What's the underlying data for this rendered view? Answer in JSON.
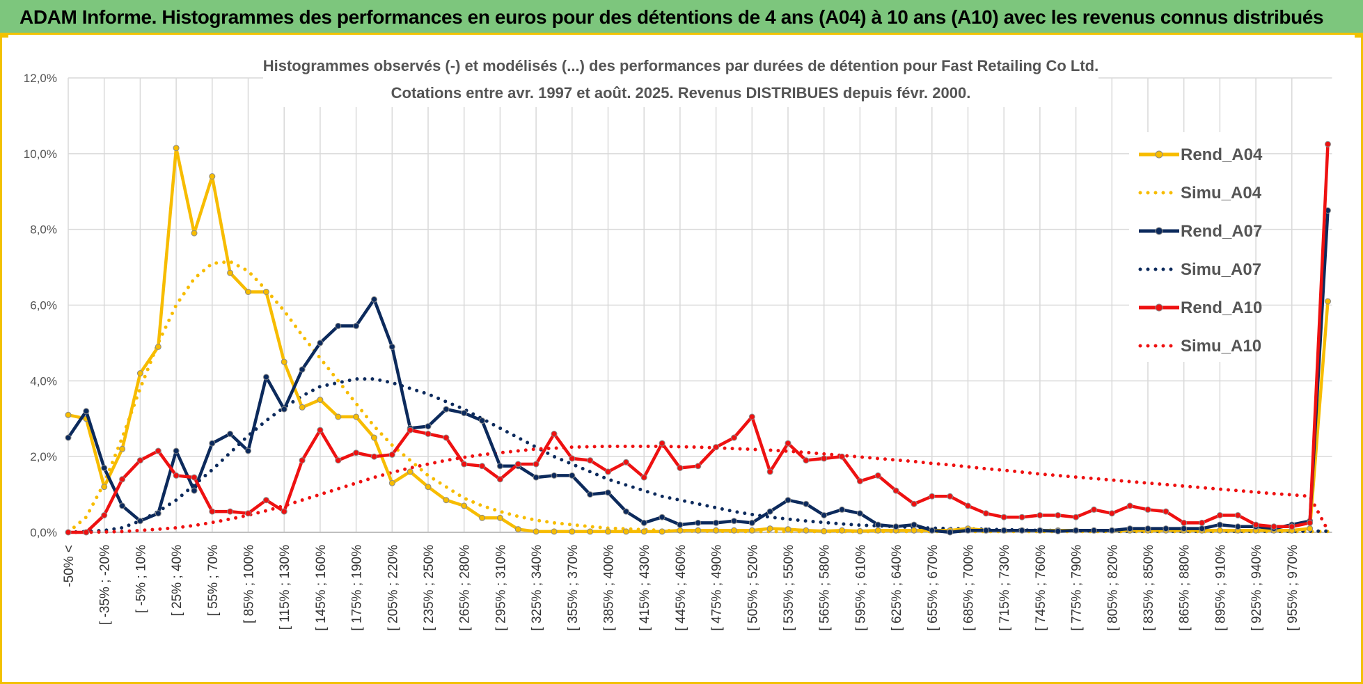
{
  "header": {
    "title": "ADAM Informe. Histogrammes des performances en euros pour des détentions de 4 ans (A04) à 10 ans (A10) avec les revenus connus distribués"
  },
  "colors": {
    "banner_bg": "#7dc67d",
    "accent": "#f2c200",
    "A04": "#f7bc00",
    "A07": "#0c2a5c",
    "A10": "#ee1111",
    "grid": "#d9d9d9"
  },
  "chart_data": {
    "type": "line",
    "title_line1": "Histogrammes observés (-) et modélisés (...) des performances par durées de détention pour Fast Retailing Co Ltd.",
    "title_line2": "Cotations entre avr. 1997 et août. 2025. Revenus DISTRIBUES depuis févr. 2000.",
    "xlabel": "",
    "ylabel": "",
    "ylim": [
      0,
      12
    ],
    "y_ticks": [
      "0,0%",
      "2,0%",
      "4,0%",
      "6,0%",
      "8,0%",
      "10,0%",
      "12,0%"
    ],
    "grid": true,
    "legend_position": "top-right",
    "x_tick_labels": [
      "-50% <",
      "[ -35% ; -20%",
      "[ -5% ; 10%",
      "[ 25% ; 40%",
      "[ 55% ; 70%",
      "[ 85% ; 100%",
      "[ 115% ; 130%",
      "[ 145% ; 160%",
      "[ 175% ; 190%",
      "[ 205% ; 220%",
      "[ 235% ; 250%",
      "[ 265% ; 280%",
      "[ 295% ; 310%",
      "[ 325% ; 340%",
      "[ 355% ; 370%",
      "[ 385% ; 400%",
      "[ 415% ; 430%",
      "[ 445% ; 460%",
      "[ 475% ; 490%",
      "[ 505% ; 520%",
      "[ 535% ; 550%",
      "[ 565% ; 580%",
      "[ 595% ; 610%",
      "[ 625% ; 640%",
      "[ 655% ; 670%",
      "[ 685% ; 700%",
      "[ 715% ; 730%",
      "[ 745% ; 760%",
      "[ 775% ; 790%",
      "[ 805% ; 820%",
      "[ 835% ; 850%",
      "[ 865% ; 880%",
      "[ 895% ; 910%",
      "[ 925% ; 940%",
      "[ 955% ; 970%"
    ],
    "x_tick_step": 2,
    "series": [
      {
        "name": "Rend_A04",
        "style": "solid",
        "color": "#f7bc00",
        "values": [
          3.1,
          3.0,
          1.2,
          2.2,
          4.2,
          4.9,
          10.15,
          7.9,
          9.4,
          6.85,
          6.35,
          6.35,
          4.5,
          3.3,
          3.5,
          3.05,
          3.05,
          2.5,
          1.3,
          1.6,
          1.2,
          0.85,
          0.7,
          0.38,
          0.38,
          0.08,
          0.02,
          0.02,
          0.02,
          0.02,
          0.02,
          0.02,
          0.02,
          0.02,
          0.05,
          0.05,
          0.05,
          0.05,
          0.05,
          0.1,
          0.08,
          0.05,
          0.03,
          0.05,
          0.03,
          0.05,
          0.05,
          0.05,
          0.05,
          0.05,
          0.1,
          0.05,
          0.05,
          0.05,
          0.05,
          0.05,
          0.05,
          0.05,
          0.05,
          0.05,
          0.05,
          0.05,
          0.05,
          0.05,
          0.05,
          0.05,
          0.05,
          0.05,
          0.05,
          0.1,
          6.1
        ]
      },
      {
        "name": "Simu_A04",
        "style": "dotted",
        "color": "#f7bc00",
        "values": [
          0.0,
          0.4,
          1.3,
          2.5,
          3.8,
          5.0,
          6.0,
          6.7,
          7.1,
          7.15,
          6.9,
          6.4,
          5.85,
          5.2,
          4.6,
          4.0,
          3.4,
          2.8,
          2.3,
          1.9,
          1.5,
          1.2,
          0.9,
          0.7,
          0.55,
          0.42,
          0.32,
          0.25,
          0.2,
          0.15,
          0.11,
          0.09,
          0.07,
          0.05,
          0.04,
          0.03,
          0.03,
          0.02,
          0.02,
          0.02,
          0.02,
          0.02,
          0.02,
          0.02,
          0.02,
          0.02,
          0.02,
          0.02,
          0.02,
          0.02,
          0.02,
          0.02,
          0.02,
          0.02,
          0.02,
          0.02,
          0.02,
          0.02,
          0.02,
          0.02,
          0.02,
          0.02,
          0.02,
          0.02,
          0.02,
          0.02,
          0.02,
          0.02,
          0.02,
          0.02,
          0.02
        ]
      },
      {
        "name": "Rend_A07",
        "style": "solid",
        "color": "#0c2a5c",
        "values": [
          2.5,
          3.2,
          1.7,
          0.7,
          0.3,
          0.5,
          2.15,
          1.1,
          2.35,
          2.6,
          2.15,
          4.1,
          3.25,
          4.3,
          5.0,
          5.45,
          5.45,
          6.15,
          4.9,
          2.75,
          2.8,
          3.25,
          3.15,
          2.95,
          1.75,
          1.75,
          1.45,
          1.5,
          1.5,
          1.0,
          1.05,
          0.55,
          0.25,
          0.4,
          0.2,
          0.25,
          0.25,
          0.3,
          0.25,
          0.55,
          0.85,
          0.75,
          0.45,
          0.6,
          0.5,
          0.2,
          0.15,
          0.2,
          0.05,
          0.0,
          0.05,
          0.05,
          0.05,
          0.05,
          0.05,
          0.03,
          0.05,
          0.05,
          0.05,
          0.1,
          0.1,
          0.1,
          0.1,
          0.1,
          0.2,
          0.15,
          0.15,
          0.1,
          0.2,
          0.3,
          8.5
        ]
      },
      {
        "name": "Simu_A07",
        "style": "dotted",
        "color": "#0c2a5c",
        "values": [
          0.0,
          0.02,
          0.05,
          0.12,
          0.3,
          0.55,
          0.85,
          1.25,
          1.65,
          2.1,
          2.55,
          2.95,
          3.3,
          3.6,
          3.85,
          3.95,
          4.05,
          4.05,
          3.95,
          3.8,
          3.65,
          3.45,
          3.25,
          3.0,
          2.75,
          2.5,
          2.25,
          2.0,
          1.8,
          1.6,
          1.4,
          1.25,
          1.1,
          0.95,
          0.85,
          0.75,
          0.65,
          0.55,
          0.47,
          0.4,
          0.35,
          0.3,
          0.26,
          0.22,
          0.19,
          0.17,
          0.15,
          0.13,
          0.11,
          0.1,
          0.09,
          0.08,
          0.07,
          0.06,
          0.05,
          0.05,
          0.04,
          0.04,
          0.03,
          0.03,
          0.03,
          0.03,
          0.03,
          0.03,
          0.03,
          0.03,
          0.03,
          0.03,
          0.03,
          0.03,
          0.03
        ]
      },
      {
        "name": "Rend_A10",
        "style": "solid",
        "color": "#ee1111",
        "values": [
          0.0,
          0.0,
          0.45,
          1.4,
          1.9,
          2.15,
          1.5,
          1.45,
          0.55,
          0.55,
          0.5,
          0.85,
          0.55,
          1.9,
          2.7,
          1.9,
          2.1,
          2.0,
          2.05,
          2.7,
          2.6,
          2.5,
          1.8,
          1.75,
          1.4,
          1.8,
          1.8,
          2.6,
          1.95,
          1.9,
          1.6,
          1.85,
          1.45,
          2.35,
          1.7,
          1.75,
          2.25,
          2.5,
          3.05,
          1.6,
          2.35,
          1.9,
          1.95,
          2.0,
          1.35,
          1.5,
          1.1,
          0.75,
          0.95,
          0.95,
          0.7,
          0.5,
          0.4,
          0.4,
          0.45,
          0.45,
          0.4,
          0.6,
          0.5,
          0.7,
          0.6,
          0.55,
          0.25,
          0.25,
          0.45,
          0.45,
          0.2,
          0.15,
          0.15,
          0.25,
          10.25
        ]
      },
      {
        "name": "Simu_A10",
        "style": "dotted",
        "color": "#ee1111",
        "values": [
          0.0,
          0.0,
          0.01,
          0.02,
          0.05,
          0.08,
          0.12,
          0.18,
          0.26,
          0.35,
          0.45,
          0.57,
          0.7,
          0.85,
          1.0,
          1.15,
          1.3,
          1.45,
          1.58,
          1.7,
          1.8,
          1.9,
          1.98,
          2.05,
          2.1,
          2.15,
          2.2,
          2.22,
          2.25,
          2.26,
          2.27,
          2.27,
          2.27,
          2.27,
          2.26,
          2.25,
          2.23,
          2.21,
          2.19,
          2.17,
          2.14,
          2.11,
          2.07,
          2.03,
          1.99,
          1.95,
          1.91,
          1.87,
          1.82,
          1.78,
          1.73,
          1.68,
          1.64,
          1.59,
          1.54,
          1.5,
          1.46,
          1.42,
          1.38,
          1.34,
          1.3,
          1.26,
          1.22,
          1.18,
          1.14,
          1.1,
          1.06,
          1.02,
          0.99,
          0.95,
          0.05
        ]
      }
    ]
  }
}
